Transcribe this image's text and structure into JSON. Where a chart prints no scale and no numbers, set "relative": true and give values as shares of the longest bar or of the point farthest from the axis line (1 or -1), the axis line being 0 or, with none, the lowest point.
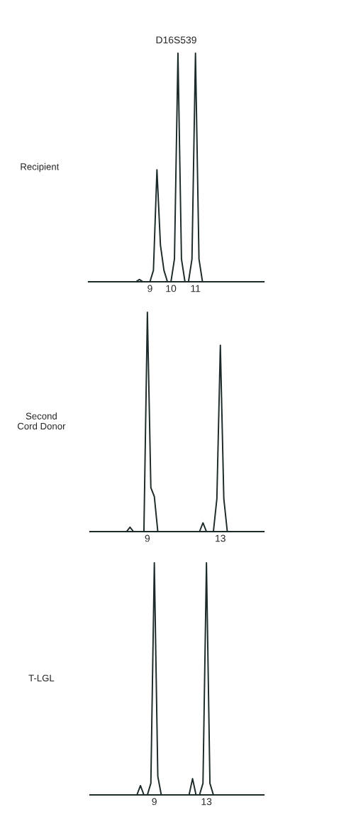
{
  "chart_data": [
    {
      "type": "line",
      "title": "D16S539",
      "ylabel": "Recipient",
      "relative": true,
      "tick_labels": "x",
      "marker": "none",
      "line_style": "solid",
      "grid": false,
      "legend": false,
      "categories": [
        null,
        null,
        null,
        null,
        null,
        null,
        null,
        null,
        null,
        null,
        null,
        null,
        null,
        null,
        null,
        null,
        null,
        "9",
        null,
        null,
        null,
        null,
        null,
        "10",
        null,
        null,
        null,
        null,
        null,
        null,
        "11",
        null,
        null,
        null,
        null,
        null,
        null,
        null,
        null,
        null,
        null,
        null,
        null,
        null,
        null,
        null,
        null,
        null,
        null,
        null
      ],
      "series": [
        {
          "color": "#1c2a2a",
          "values": [
            0,
            0,
            0,
            0,
            0,
            0,
            0,
            0,
            0,
            0,
            0,
            0,
            0,
            0,
            0.01,
            0,
            0,
            0,
            0.05,
            0.49,
            0.16,
            0.05,
            0,
            0,
            0.1,
            1,
            0.1,
            0,
            0,
            0.1,
            1,
            0.1,
            0,
            0,
            0,
            0,
            0,
            0,
            0,
            0,
            0,
            0,
            0,
            0,
            0,
            0,
            0,
            0,
            0,
            0
          ]
        }
      ]
    },
    {
      "type": "line",
      "ylabel": "Second\nCord Donor",
      "relative": true,
      "tick_labels": "x",
      "marker": "none",
      "line_style": "solid",
      "grid": false,
      "legend": false,
      "categories": [
        null,
        null,
        null,
        null,
        null,
        null,
        null,
        null,
        null,
        null,
        null,
        null,
        null,
        null,
        null,
        null,
        "9",
        null,
        null,
        null,
        null,
        null,
        null,
        null,
        null,
        null,
        null,
        null,
        null,
        null,
        null,
        null,
        null,
        null,
        null,
        null,
        null,
        "13",
        null,
        null,
        null,
        null,
        null,
        null,
        null,
        null,
        null,
        null,
        null,
        null
      ],
      "series": [
        {
          "color": "#1c2a2a",
          "values": [
            0,
            0,
            0,
            0,
            0,
            0,
            0,
            0,
            0,
            0,
            0,
            0.02,
            0,
            0,
            0,
            0,
            1,
            0.2,
            0.16,
            0,
            0,
            0,
            0,
            0,
            0,
            0,
            0,
            0,
            0,
            0,
            0,
            0,
            0.04,
            0,
            0,
            0,
            0.15,
            0.85,
            0.15,
            0,
            0,
            0,
            0,
            0,
            0,
            0,
            0,
            0,
            0,
            0
          ]
        }
      ]
    },
    {
      "type": "line",
      "ylabel": "T-LGL",
      "relative": true,
      "tick_labels": "x",
      "marker": "none",
      "line_style": "solid",
      "grid": false,
      "legend": false,
      "categories": [
        null,
        null,
        null,
        null,
        null,
        null,
        null,
        null,
        null,
        null,
        null,
        null,
        null,
        null,
        null,
        null,
        null,
        null,
        "9",
        null,
        null,
        null,
        null,
        null,
        null,
        null,
        null,
        null,
        null,
        null,
        null,
        null,
        null,
        "13",
        null,
        null,
        null,
        null,
        null,
        null,
        null,
        null,
        null,
        null,
        null,
        null,
        null,
        null,
        null,
        null
      ],
      "series": [
        {
          "color": "#1c2a2a",
          "values": [
            0,
            0,
            0,
            0,
            0,
            0,
            0,
            0,
            0,
            0,
            0,
            0,
            0,
            0,
            0.04,
            0,
            0,
            0.05,
            1,
            0.08,
            0,
            0,
            0,
            0,
            0,
            0,
            0,
            0,
            0,
            0.07,
            0,
            0,
            0.05,
            1,
            0.05,
            0,
            0,
            0,
            0,
            0,
            0,
            0,
            0,
            0,
            0,
            0,
            0,
            0,
            0,
            0
          ]
        }
      ]
    }
  ]
}
